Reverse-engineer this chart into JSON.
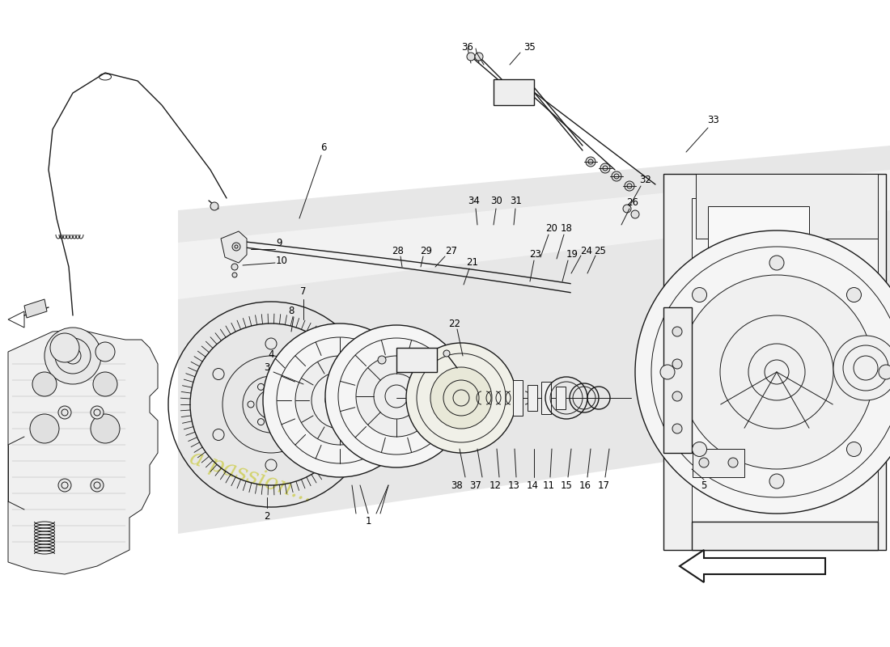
{
  "background_color": "#ffffff",
  "line_color": "#1a1a1a",
  "watermark_color": "#cccc44",
  "figsize": [
    11,
    8
  ],
  "dpi": 100,
  "bg_gray": "#e0e0e0",
  "bg_light": "#f0f0f0",
  "yellow_tint": "#e8e8a0"
}
